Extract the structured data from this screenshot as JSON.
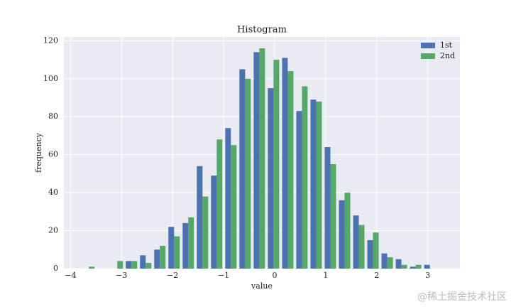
{
  "chart_data": {
    "type": "histogram",
    "title": "Histogram",
    "x_label": "value",
    "y_label": "frequency",
    "bins": [
      -3.78,
      -3.502,
      -3.223,
      -2.945,
      -2.666,
      -2.388,
      -2.11,
      -1.831,
      -1.553,
      -1.274,
      -0.996,
      -0.718,
      -0.439,
      -0.161,
      0.118,
      0.396,
      0.674,
      0.953,
      1.231,
      1.51,
      1.788,
      2.066,
      2.345,
      2.623,
      2.902,
      3.18
    ],
    "series": [
      {
        "name": "1st",
        "color": "#4c72b0",
        "values": [
          0,
          0,
          0,
          4,
          7,
          10,
          22,
          24,
          54,
          49,
          74,
          105,
          114,
          95,
          111,
          83,
          89,
          64,
          36,
          28,
          15,
          8,
          5,
          1,
          2
        ]
      },
      {
        "name": "2nd",
        "color": "#55a868",
        "values": [
          1,
          0,
          4,
          4,
          3,
          12,
          17,
          27,
          38,
          68,
          65,
          100,
          116,
          110,
          104,
          96,
          88,
          55,
          40,
          23,
          19,
          6,
          2,
          2,
          0
        ]
      }
    ],
    "xlim": [
      -4.13,
      3.63
    ],
    "ylim": [
      0,
      122
    ],
    "xticks": [
      {
        "value": -4,
        "label": "−4"
      },
      {
        "value": -3,
        "label": "−3"
      },
      {
        "value": -2,
        "label": "−2"
      },
      {
        "value": -1,
        "label": "−1"
      },
      0,
      1,
      2,
      3
    ],
    "yticks": [
      0,
      20,
      40,
      60,
      80,
      100,
      120
    ],
    "grid": true,
    "legend": "upper right",
    "background": "#eaeaf2",
    "watermark": "@稀土掘金技术社区"
  }
}
